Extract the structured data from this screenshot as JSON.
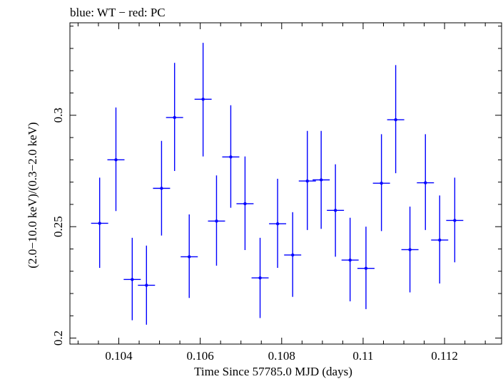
{
  "chart_data": {
    "type": "scatter",
    "title": "blue: WT − red: PC",
    "xlabel": "Time Since 57785.0 MJD (days)",
    "ylabel": "(2.0−10.0 keV)/(0.3−2.0 keV)",
    "xlim": [
      0.1028,
      0.1134
    ],
    "ylim": [
      0.1973,
      0.3415
    ],
    "x_ticks": [
      {
        "value": 0.104,
        "label": "0.104"
      },
      {
        "value": 0.106,
        "label": "0.106"
      },
      {
        "value": 0.108,
        "label": "0.108"
      },
      {
        "value": 0.11,
        "label": "0.11"
      },
      {
        "value": 0.112,
        "label": "0.112"
      }
    ],
    "y_ticks": [
      {
        "value": 0.2,
        "label": "0.2"
      },
      {
        "value": 0.25,
        "label": "0.25"
      },
      {
        "value": 0.3,
        "label": "0.3"
      }
    ],
    "grid": false,
    "series": [
      {
        "color": "#0000ff",
        "points": [
          {
            "x": 0.10353,
            "y": 0.2515,
            "xerr": 0.00021,
            "ylo": 0.2315,
            "yhi": 0.272
          },
          {
            "x": 0.10393,
            "y": 0.28,
            "xerr": 0.00021,
            "ylo": 0.257,
            "yhi": 0.3035
          },
          {
            "x": 0.10433,
            "y": 0.2263,
            "xerr": 0.00021,
            "ylo": 0.208,
            "yhi": 0.245
          },
          {
            "x": 0.10468,
            "y": 0.2237,
            "xerr": 0.00021,
            "ylo": 0.206,
            "yhi": 0.2415
          },
          {
            "x": 0.10505,
            "y": 0.2672,
            "xerr": 0.00021,
            "ylo": 0.246,
            "yhi": 0.2885
          },
          {
            "x": 0.10537,
            "y": 0.299,
            "xerr": 0.00021,
            "ylo": 0.275,
            "yhi": 0.3235
          },
          {
            "x": 0.10573,
            "y": 0.2365,
            "xerr": 0.00021,
            "ylo": 0.218,
            "yhi": 0.2555
          },
          {
            "x": 0.10607,
            "y": 0.3072,
            "xerr": 0.00021,
            "ylo": 0.2815,
            "yhi": 0.3325
          },
          {
            "x": 0.1064,
            "y": 0.2525,
            "xerr": 0.00021,
            "ylo": 0.2325,
            "yhi": 0.273
          },
          {
            "x": 0.10675,
            "y": 0.2813,
            "xerr": 0.00021,
            "ylo": 0.2585,
            "yhi": 0.3045
          },
          {
            "x": 0.1071,
            "y": 0.2603,
            "xerr": 0.00021,
            "ylo": 0.2395,
            "yhi": 0.2815
          },
          {
            "x": 0.10747,
            "y": 0.227,
            "xerr": 0.00021,
            "ylo": 0.209,
            "yhi": 0.245
          },
          {
            "x": 0.1079,
            "y": 0.2513,
            "xerr": 0.00021,
            "ylo": 0.2315,
            "yhi": 0.2715
          },
          {
            "x": 0.10827,
            "y": 0.2373,
            "xerr": 0.00021,
            "ylo": 0.2185,
            "yhi": 0.2565
          },
          {
            "x": 0.10863,
            "y": 0.2705,
            "xerr": 0.00021,
            "ylo": 0.2485,
            "yhi": 0.293
          },
          {
            "x": 0.10897,
            "y": 0.271,
            "xerr": 0.00021,
            "ylo": 0.249,
            "yhi": 0.293
          },
          {
            "x": 0.10932,
            "y": 0.2573,
            "xerr": 0.00021,
            "ylo": 0.2365,
            "yhi": 0.278
          },
          {
            "x": 0.10968,
            "y": 0.235,
            "xerr": 0.00021,
            "ylo": 0.2165,
            "yhi": 0.254
          },
          {
            "x": 0.11007,
            "y": 0.2313,
            "xerr": 0.00021,
            "ylo": 0.213,
            "yhi": 0.25
          },
          {
            "x": 0.11045,
            "y": 0.2695,
            "xerr": 0.00021,
            "ylo": 0.248,
            "yhi": 0.2915
          },
          {
            "x": 0.1108,
            "y": 0.298,
            "xerr": 0.00021,
            "ylo": 0.274,
            "yhi": 0.3225
          },
          {
            "x": 0.11115,
            "y": 0.2397,
            "xerr": 0.00021,
            "ylo": 0.2205,
            "yhi": 0.259
          },
          {
            "x": 0.11153,
            "y": 0.2697,
            "xerr": 0.00021,
            "ylo": 0.2485,
            "yhi": 0.2915
          },
          {
            "x": 0.11188,
            "y": 0.244,
            "xerr": 0.00021,
            "ylo": 0.2245,
            "yhi": 0.264
          },
          {
            "x": 0.11225,
            "y": 0.2528,
            "xerr": 0.00021,
            "ylo": 0.234,
            "yhi": 0.272
          }
        ]
      }
    ]
  }
}
